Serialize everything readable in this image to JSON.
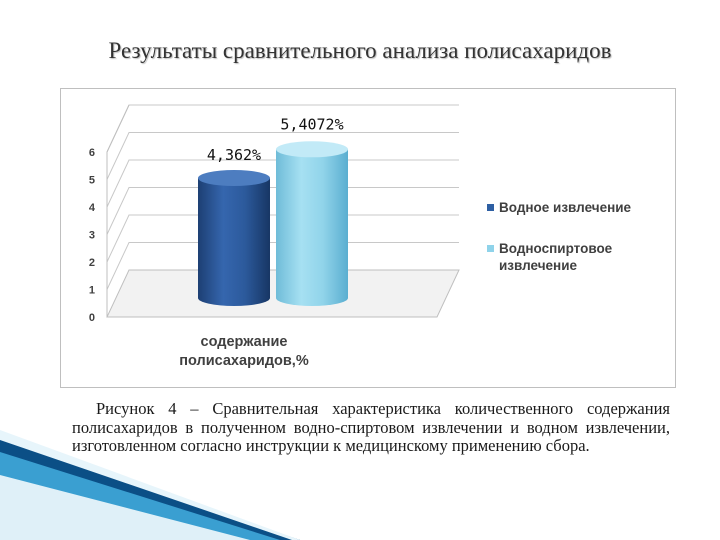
{
  "slide": {
    "title": "Результаты сравнительного анализа полисахаридов"
  },
  "chart_data": {
    "type": "bar",
    "subtype": "3d-cylinder",
    "categories": [
      "содержание полисахаридов,%"
    ],
    "xlabel": "содержание полисахаридов,%",
    "ylabel": "",
    "ylim": [
      0,
      6
    ],
    "yticks": [
      0,
      1,
      2,
      3,
      4,
      5,
      6
    ],
    "grid": true,
    "legend_position": "right",
    "series": [
      {
        "name": "Водное извлечение",
        "values": [
          4.362
        ],
        "label": "4,362%",
        "color": "#2e5fa3"
      },
      {
        "name": "Водноспиртовое извлечение",
        "values": [
          5.4072
        ],
        "label": "5,4072%",
        "color": "#8fd3ea"
      }
    ]
  },
  "legend": {
    "items": [
      {
        "label": "Водное извлечение",
        "color": "#2e5fa3"
      },
      {
        "label": "Водноспиртовое извлечение",
        "color": "#8fd3ea"
      }
    ]
  },
  "caption": {
    "text": "Рисунок 4 – Сравнительная характеристика количественного содержания полисахаридов в полученном водно-спиртовом извлечении и водном извлечении, изготовленном согласно инструкции к медицинскому применению сбора."
  }
}
